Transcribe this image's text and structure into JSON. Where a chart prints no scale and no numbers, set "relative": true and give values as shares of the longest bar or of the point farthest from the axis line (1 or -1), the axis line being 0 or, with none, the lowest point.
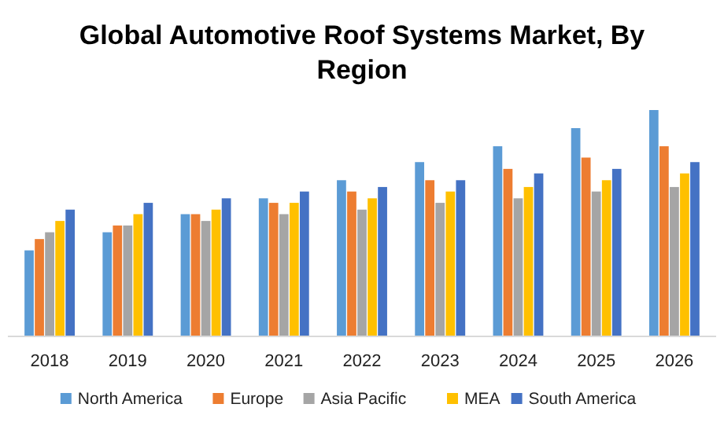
{
  "chart_data": {
    "type": "bar",
    "title": "Global Automotive Roof Systems Market, By Region",
    "relative": true,
    "legend": "bottom",
    "categories": [
      "2018",
      "2019",
      "2020",
      "2021",
      "2022",
      "2023",
      "2024",
      "2025",
      "2026"
    ],
    "series": [
      {
        "name": "North America",
        "color": "#5b9bd5",
        "values": [
          0.38,
          0.46,
          0.54,
          0.61,
          0.69,
          0.77,
          0.84,
          0.92,
          1
        ]
      },
      {
        "name": "Europe",
        "color": "#ed7d31",
        "values": [
          0.43,
          0.49,
          0.54,
          0.59,
          0.64,
          0.69,
          0.74,
          0.79,
          0.84
        ]
      },
      {
        "name": "Asia Pacific",
        "color": "#a5a5a5",
        "values": [
          0.46,
          0.49,
          0.51,
          0.54,
          0.56,
          0.59,
          0.61,
          0.64,
          0.66
        ]
      },
      {
        "name": "MEA",
        "color": "#ffc000",
        "values": [
          0.51,
          0.54,
          0.56,
          0.59,
          0.61,
          0.64,
          0.66,
          0.69,
          0.72
        ]
      },
      {
        "name": "South America",
        "color": "#4472c4",
        "values": [
          0.56,
          0.59,
          0.61,
          0.64,
          0.66,
          0.69,
          0.72,
          0.74,
          0.77
        ]
      }
    ]
  }
}
